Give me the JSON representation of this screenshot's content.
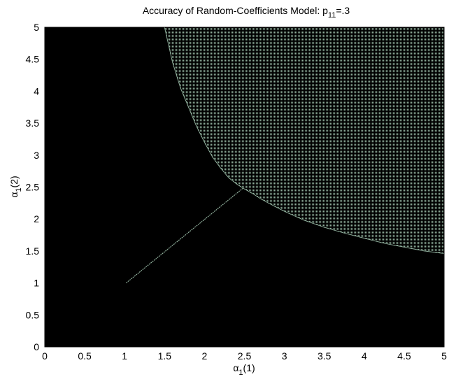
{
  "chart_data": {
    "type": "heatmap",
    "title": {
      "main": "Accuracy of Random-Coefficients Model: p",
      "sub": "11",
      "tail": "=.3"
    },
    "xlabel": {
      "symbol": "α",
      "sub": "1",
      "tail": "(1)"
    },
    "ylabel": {
      "symbol": "α",
      "sub": "1",
      "tail": "(2)"
    },
    "xlim": [
      0,
      5
    ],
    "ylim": [
      0,
      5
    ],
    "xticks": [
      0,
      0.5,
      1,
      1.5,
      2,
      2.5,
      3,
      3.5,
      4,
      4.5,
      5
    ],
    "yticks": [
      0,
      0.5,
      1,
      1.5,
      2,
      2.5,
      3,
      3.5,
      4,
      4.5,
      5
    ],
    "xtick_labels": [
      "0",
      "0.5",
      "1",
      "1.5",
      "2",
      "2.5",
      "3",
      "3.5",
      "4",
      "4.5",
      "5"
    ],
    "ytick_labels": [
      "0",
      "0.5",
      "1",
      "1.5",
      "2",
      "2.5",
      "3",
      "3.5",
      "4",
      "4.5",
      "5"
    ],
    "background_color": "#000000",
    "region_color": "#8fae9b",
    "boundary_curve": [
      [
        1.5,
        5.0
      ],
      [
        1.6,
        4.45
      ],
      [
        1.7,
        4.05
      ],
      [
        1.8,
        3.75
      ],
      [
        1.9,
        3.45
      ],
      [
        2.0,
        3.2
      ],
      [
        2.1,
        2.97
      ],
      [
        2.2,
        2.8
      ],
      [
        2.3,
        2.65
      ],
      [
        2.4,
        2.55
      ],
      [
        2.5,
        2.47
      ],
      [
        2.6,
        2.4
      ],
      [
        2.7,
        2.32
      ],
      [
        2.8,
        2.25
      ],
      [
        3.0,
        2.12
      ],
      [
        3.25,
        1.98
      ],
      [
        3.5,
        1.87
      ],
      [
        3.75,
        1.78
      ],
      [
        4.0,
        1.7
      ],
      [
        4.25,
        1.62
      ],
      [
        4.5,
        1.56
      ],
      [
        4.75,
        1.5
      ],
      [
        5.0,
        1.46
      ]
    ],
    "diagonal_line": [
      [
        1.02,
        1.0
      ],
      [
        2.48,
        2.48
      ]
    ]
  }
}
